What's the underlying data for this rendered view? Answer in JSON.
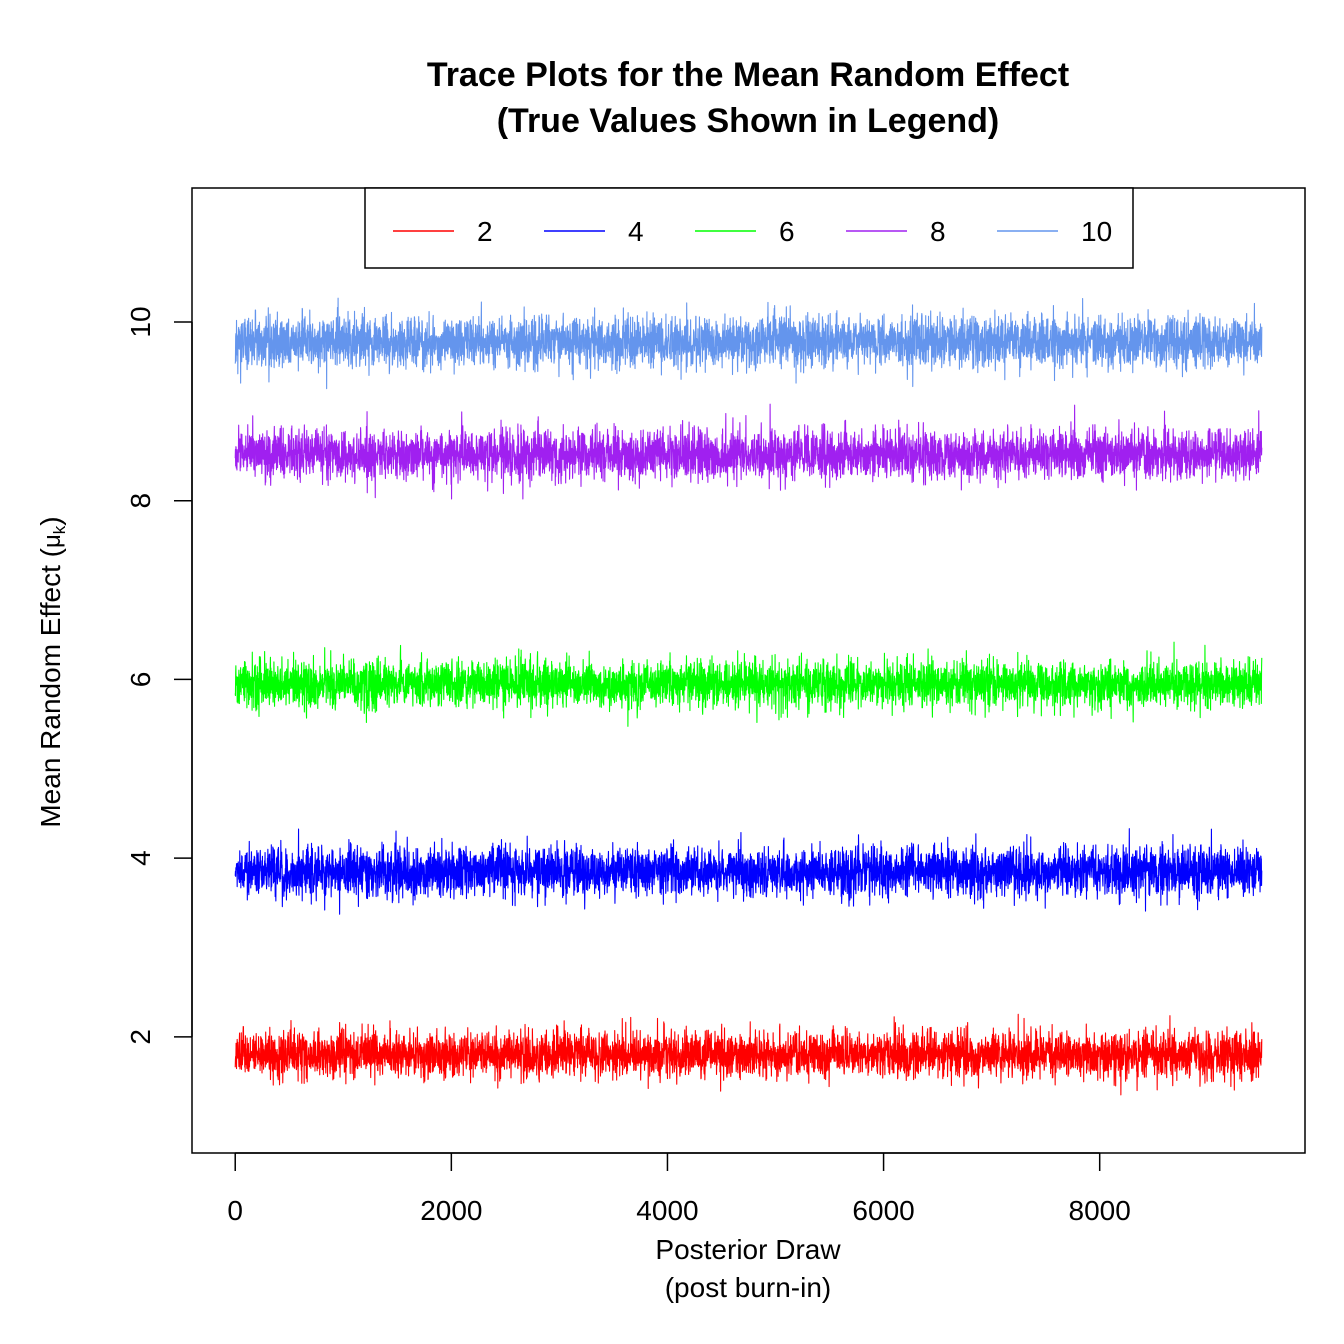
{
  "chart_data": {
    "type": "line",
    "title": "Trace Plots for the Mean Random Effect",
    "subtitle": "(True Values Shown in Legend)",
    "xlabel": "Posterior Draw",
    "xlabel_line2": "(post burn-in)",
    "ylabel": "Mean Random Effect (",
    "ylabel_symbol": "μ",
    "ylabel_subscript": "k",
    "ylabel_close": ")",
    "xlim": [
      -400,
      9900
    ],
    "ylim": [
      0.7,
      11.5
    ],
    "x_ticks": [
      0,
      2000,
      4000,
      6000,
      8000
    ],
    "y_ticks": [
      2,
      4,
      6,
      8,
      10
    ],
    "n_draws": 9500,
    "grid": false,
    "legend_position": "top-center",
    "series": [
      {
        "name": "2",
        "color": "#ff0000",
        "center": 1.8,
        "spread": 0.13,
        "min": 1.17,
        "max": 2.52
      },
      {
        "name": "4",
        "color": "#0000ff",
        "center": 3.85,
        "spread": 0.14,
        "min": 3.3,
        "max": 4.33
      },
      {
        "name": "6",
        "color": "#00ff00",
        "center": 5.95,
        "spread": 0.13,
        "min": 5.47,
        "max": 6.52
      },
      {
        "name": "8",
        "color": "#a020f0",
        "center": 8.52,
        "spread": 0.14,
        "min": 8.02,
        "max": 9.08
      },
      {
        "name": "10",
        "color": "#6495ed",
        "center": 9.78,
        "spread": 0.14,
        "min": 9.2,
        "max": 10.42
      }
    ]
  }
}
